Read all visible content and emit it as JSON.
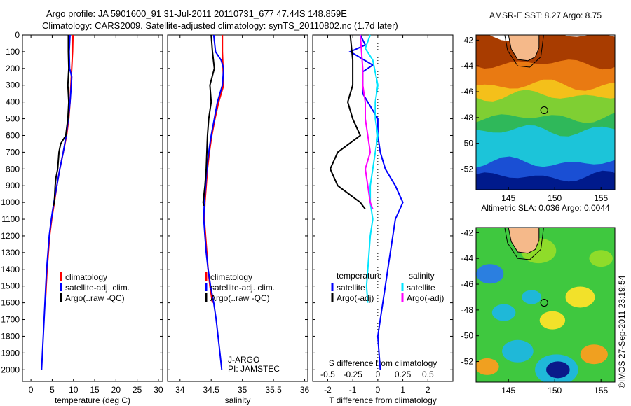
{
  "header": {
    "line1": "Argo profile: JA 5901600_91 31-Jul-2011 20110731_677 47.44S 148.859E",
    "line2": "Climatology: CARS2009. Satellite-adjusted climatology: synTS_20110802.nc (1.7d later)"
  },
  "credit": "©IMOS 27-Sep-2011 23:19:54",
  "colors": {
    "climatology": "#ff0000",
    "satellite": "#0000ff",
    "argo": "#000000",
    "sat_sal": "#00e5ff",
    "argo_sal": "#ff00ff",
    "land": "#f5b98a"
  },
  "chart_data": [
    {
      "type": "line",
      "id": "temperature",
      "xlabel": "temperature (deg C)",
      "xticks": [
        0,
        5,
        10,
        15,
        20,
        25,
        30
      ],
      "xlim": [
        -2,
        31
      ],
      "yticks": [
        0,
        100,
        200,
        300,
        400,
        500,
        600,
        700,
        800,
        900,
        1000,
        1100,
        1200,
        1300,
        1400,
        1500,
        1600,
        1700,
        1800,
        1900,
        2000
      ],
      "ylim": [
        0,
        2070
      ],
      "legend": [
        "climatology",
        "satellite-adj. clim.",
        "Argo(..raw -QC)"
      ],
      "series": [
        {
          "name": "climatology",
          "color": "#ff0000",
          "points": [
            [
              9.9,
              0
            ],
            [
              9.8,
              100
            ],
            [
              9.6,
              200
            ],
            [
              9.4,
              300
            ],
            [
              9.2,
              400
            ],
            [
              8.9,
              500
            ],
            [
              8.4,
              600
            ],
            [
              7.6,
              700
            ],
            [
              6.8,
              800
            ],
            [
              6.1,
              900
            ],
            [
              5.5,
              1000
            ],
            [
              4.9,
              1100
            ],
            [
              4.4,
              1200
            ],
            [
              4.1,
              1300
            ],
            [
              3.8,
              1400
            ],
            [
              3.6,
              1500
            ],
            [
              3.4,
              1600
            ]
          ]
        },
        {
          "name": "satellite-adj. clim.",
          "color": "#0000ff",
          "points": [
            [
              9.2,
              0
            ],
            [
              9.0,
              100
            ],
            [
              9.1,
              200
            ],
            [
              9.6,
              250
            ],
            [
              9.5,
              300
            ],
            [
              9.2,
              400
            ],
            [
              8.8,
              500
            ],
            [
              8.3,
              600
            ],
            [
              7.6,
              700
            ],
            [
              6.8,
              800
            ],
            [
              6.1,
              900
            ],
            [
              5.4,
              1000
            ],
            [
              4.8,
              1100
            ],
            [
              4.3,
              1200
            ],
            [
              4.0,
              1300
            ],
            [
              3.7,
              1400
            ],
            [
              3.5,
              1500
            ],
            [
              3.3,
              1600
            ],
            [
              3.1,
              1700
            ],
            [
              2.9,
              1800
            ],
            [
              2.7,
              1900
            ],
            [
              2.5,
              2000
            ]
          ]
        },
        {
          "name": "Argo(..raw -QC)",
          "color": "#000000",
          "points": [
            [
              8.8,
              0
            ],
            [
              8.8,
              100
            ],
            [
              8.9,
              200
            ],
            [
              8.7,
              300
            ],
            [
              8.9,
              400
            ],
            [
              8.7,
              500
            ],
            [
              8.2,
              600
            ],
            [
              7.0,
              650
            ],
            [
              6.6,
              700
            ],
            [
              6.3,
              800
            ],
            [
              5.9,
              850
            ],
            [
              5.7,
              900
            ],
            [
              5.5,
              1000
            ],
            [
              5.3,
              1020
            ]
          ]
        }
      ]
    },
    {
      "type": "line",
      "id": "salinity",
      "xlabel": "salinity",
      "xticks": [
        34,
        34.5,
        35,
        35.5,
        36
      ],
      "xlim": [
        33.8,
        36.05
      ],
      "legend": [
        "climatology",
        "satellite-adj. clim.",
        "Argo(..raw -QC)"
      ],
      "annotations": [
        "J-ARGO",
        "PI: JAMSTEC"
      ],
      "series": [
        {
          "name": "climatology",
          "color": "#ff0000",
          "points": [
            [
              34.68,
              0
            ],
            [
              34.68,
              100
            ],
            [
              34.69,
              200
            ],
            [
              34.7,
              300
            ],
            [
              34.62,
              400
            ],
            [
              34.56,
              500
            ],
            [
              34.51,
              600
            ],
            [
              34.47,
              700
            ],
            [
              34.44,
              800
            ],
            [
              34.42,
              900
            ],
            [
              34.4,
              1000
            ],
            [
              34.39,
              1100
            ],
            [
              34.41,
              1200
            ],
            [
              34.43,
              1300
            ],
            [
              34.45,
              1400
            ],
            [
              34.48,
              1500
            ],
            [
              34.52,
              1600
            ]
          ]
        },
        {
          "name": "satellite-adj. clim.",
          "color": "#0000ff",
          "points": [
            [
              34.54,
              0
            ],
            [
              34.57,
              100
            ],
            [
              34.66,
              150
            ],
            [
              34.7,
              200
            ],
            [
              34.68,
              300
            ],
            [
              34.6,
              400
            ],
            [
              34.55,
              500
            ],
            [
              34.5,
              600
            ],
            [
              34.46,
              700
            ],
            [
              34.43,
              800
            ],
            [
              34.41,
              900
            ],
            [
              34.39,
              1000
            ],
            [
              34.38,
              1100
            ],
            [
              34.4,
              1200
            ],
            [
              34.42,
              1300
            ],
            [
              34.45,
              1400
            ],
            [
              34.49,
              1500
            ],
            [
              34.54,
              1600
            ],
            [
              34.58,
              1700
            ],
            [
              34.61,
              1800
            ],
            [
              34.64,
              1900
            ],
            [
              34.67,
              2000
            ]
          ]
        },
        {
          "name": "Argo(..raw -QC)",
          "color": "#000000",
          "points": [
            [
              34.5,
              0
            ],
            [
              34.52,
              100
            ],
            [
              34.55,
              200
            ],
            [
              34.48,
              300
            ],
            [
              34.5,
              400
            ],
            [
              34.46,
              500
            ],
            [
              34.44,
              600
            ],
            [
              34.43,
              700
            ],
            [
              34.42,
              800
            ],
            [
              34.4,
              900
            ],
            [
              34.37,
              1000
            ],
            [
              34.38,
              1020
            ]
          ]
        }
      ]
    },
    {
      "type": "line",
      "id": "difference",
      "xlabel": "T difference from climatology",
      "xlabel2": "S difference from climatology",
      "xticks": [
        -2,
        -1,
        0,
        1,
        2
      ],
      "xticks2": [
        -0.5,
        -0.25,
        0,
        0.25,
        0.5
      ],
      "xlim": [
        -2.6,
        3.0
      ],
      "legend_temperature_title": "temperature",
      "legend_salinity_title": "salinity",
      "legend": [
        "satellite",
        "Argo(-adj)",
        "satellite",
        "Argo(-adj)"
      ],
      "series": [
        {
          "name": "temperature satellite",
          "color": "#0000ff",
          "points": [
            [
              -0.7,
              0
            ],
            [
              -0.5,
              60
            ],
            [
              -1.1,
              100
            ],
            [
              -0.2,
              180
            ],
            [
              -0.6,
              220
            ],
            [
              -0.6,
              350
            ],
            [
              0.0,
              500
            ],
            [
              0.0,
              600
            ],
            [
              0.1,
              700
            ],
            [
              0.3,
              800
            ],
            [
              0.7,
              900
            ],
            [
              1.0,
              1000
            ],
            [
              0.7,
              1100
            ],
            [
              0.6,
              1200
            ],
            [
              0.5,
              1300
            ],
            [
              0.4,
              1400
            ],
            [
              0.3,
              1500
            ],
            [
              0.2,
              1600
            ],
            [
              0.1,
              1700
            ],
            [
              0.0,
              1800
            ],
            [
              0.05,
              1900
            ],
            [
              0.1,
              2000
            ]
          ]
        },
        {
          "name": "temperature Argo(-adj)",
          "color": "#000000",
          "points": [
            [
              -1.1,
              0
            ],
            [
              -1.0,
              150
            ],
            [
              -1.0,
              300
            ],
            [
              -1.2,
              400
            ],
            [
              -1.0,
              500
            ],
            [
              -0.7,
              600
            ],
            [
              -1.6,
              700
            ],
            [
              -1.9,
              800
            ],
            [
              -1.6,
              900
            ],
            [
              -0.7,
              1000
            ],
            [
              -0.5,
              1040
            ]
          ]
        },
        {
          "name": "salinity satellite",
          "color": "#00e5ff",
          "points": [
            [
              -0.3,
              0
            ],
            [
              -0.5,
              80
            ],
            [
              -0.2,
              150
            ],
            [
              0.0,
              300
            ],
            [
              -0.1,
              400
            ],
            [
              -0.1,
              500
            ],
            [
              0.0,
              600
            ],
            [
              -0.1,
              700
            ],
            [
              -0.2,
              800
            ],
            [
              -0.3,
              900
            ],
            [
              -0.3,
              1000
            ],
            [
              -0.2,
              1100
            ],
            [
              -0.3,
              1200
            ],
            [
              -0.35,
              1300
            ],
            [
              -0.4,
              1400
            ],
            [
              -0.45,
              1500
            ],
            [
              -0.4,
              1600
            ]
          ]
        },
        {
          "name": "salinity Argo(-adj)",
          "color": "#ff00ff",
          "points": [
            [
              -0.7,
              0
            ],
            [
              -0.6,
              200
            ],
            [
              -0.6,
              300
            ],
            [
              -0.5,
              400
            ],
            [
              -0.5,
              500
            ],
            [
              -0.4,
              600
            ],
            [
              -0.3,
              700
            ],
            [
              -0.5,
              800
            ],
            [
              -0.4,
              900
            ],
            [
              -0.3,
              1000
            ],
            [
              -0.2,
              1040
            ]
          ]
        }
      ]
    }
  ],
  "maps": [
    {
      "id": "sst",
      "title": "AMSR-E SST: 8.27 Argo: 8.75",
      "xticks": [
        145,
        150,
        155
      ],
      "yticks": [
        -42,
        -44,
        -46,
        -48,
        -50,
        -52
      ],
      "xlim": [
        141.5,
        156.5
      ],
      "ylim": [
        -53.6,
        -41.6
      ],
      "marker": [
        148.86,
        -47.44
      ],
      "bands": [
        {
          "lat": -41.6,
          "color": "#a83c00"
        },
        {
          "lat": -43.8,
          "color": "#e97a12"
        },
        {
          "lat": -45.5,
          "color": "#f4c01a"
        },
        {
          "lat": -46.3,
          "color": "#7fcf33"
        },
        {
          "lat": -48.0,
          "color": "#2fb85a"
        },
        {
          "lat": -49.0,
          "color": "#1cc4d9"
        },
        {
          "lat": -51.5,
          "color": "#1a4fd4"
        },
        {
          "lat": -52.6,
          "color": "#001a8c"
        }
      ]
    },
    {
      "id": "sla",
      "title": "Altimetric SLA: 0.036 Argo: 0.0044",
      "xticks": [
        145,
        150,
        155
      ],
      "yticks": [
        -42,
        -44,
        -46,
        -48,
        -50,
        -52
      ],
      "xlim": [
        141.5,
        156.5
      ],
      "ylim": [
        -53.6,
        -41.6
      ],
      "marker": [
        148.86,
        -47.44
      ],
      "background": "#3fc83f"
    }
  ]
}
